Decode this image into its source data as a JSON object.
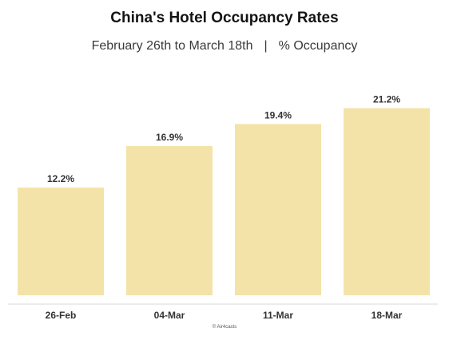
{
  "title": "China's Hotel Occupancy Rates",
  "subtitle": {
    "date_range": "February 26th to March 18th",
    "separator": "|",
    "measure": "% Occupancy"
  },
  "credit": "© Air4casts",
  "colors": {
    "bar": "#f4e3a9",
    "axis": "#d9d9d9",
    "text": "#333333"
  },
  "chart_data": {
    "type": "bar",
    "title": "China's Hotel Occupancy Rates",
    "categories": [
      "26-Feb",
      "04-Mar",
      "11-Mar",
      "18-Mar"
    ],
    "values": [
      12.2,
      16.9,
      19.4,
      21.2
    ],
    "value_labels": [
      "12.2%",
      "16.9%",
      "19.4%",
      "21.2%"
    ],
    "ylim": [
      0,
      23.5
    ],
    "grid": false,
    "legend": "none"
  }
}
